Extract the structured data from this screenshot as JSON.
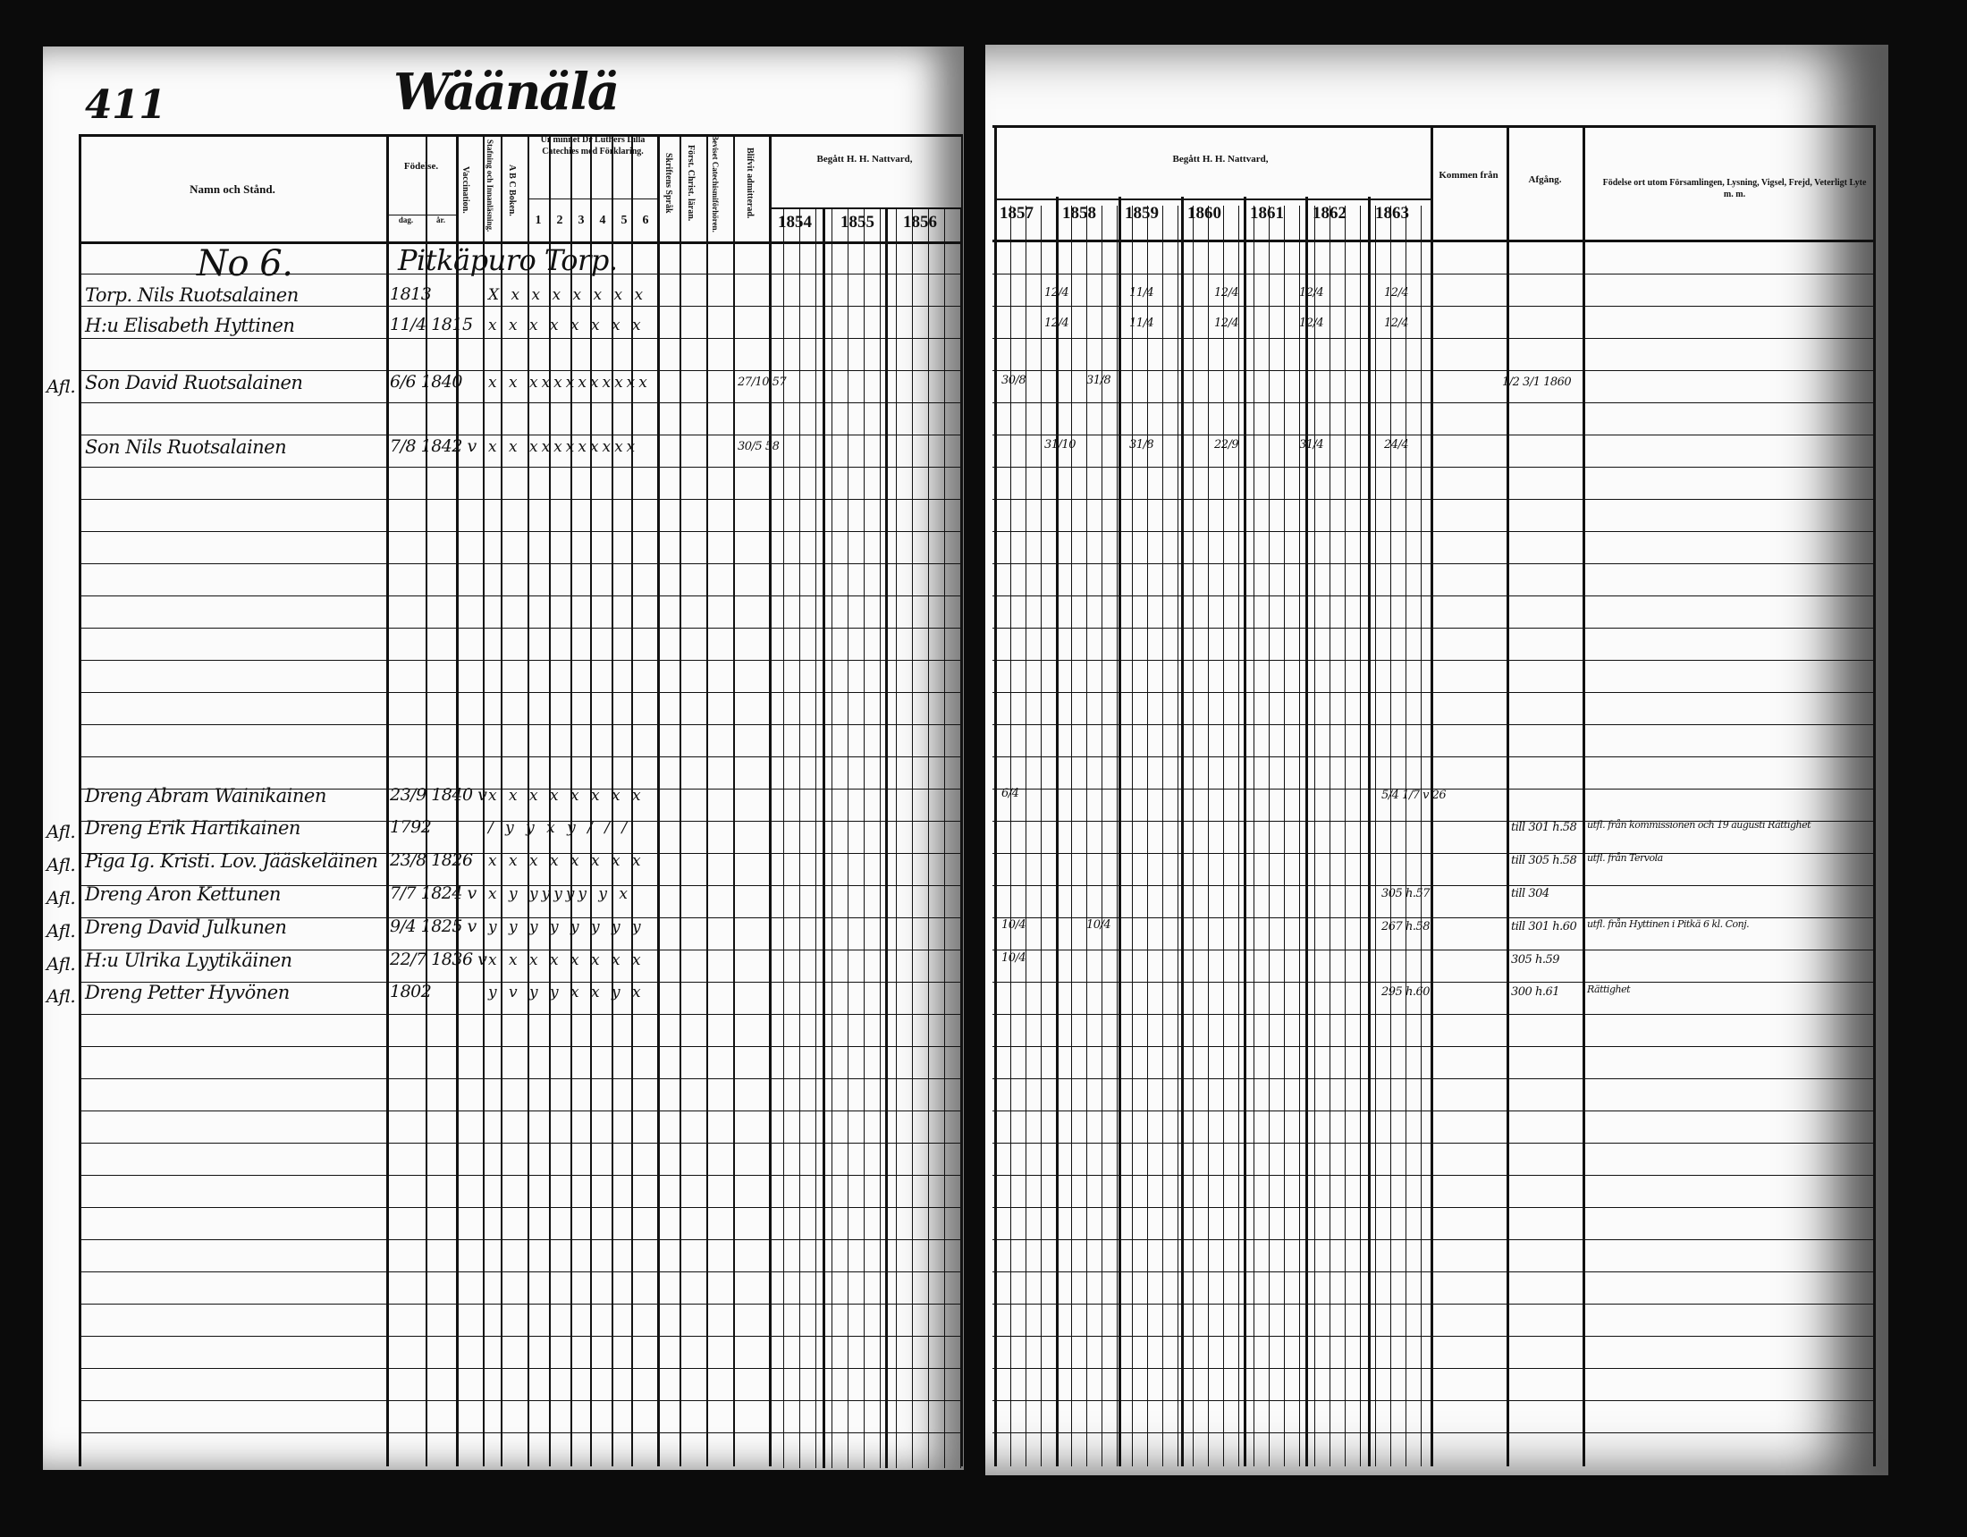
{
  "page_number": "411",
  "parish": "Wäänälä",
  "headers": {
    "name": "Namn och Stånd.",
    "birth": "Födelse.",
    "day": "dag.",
    "year": "år.",
    "vaccination": "Vaccination.",
    "spelling": "Stafning och Innanläsning.",
    "abc": "A B C Boken.",
    "catechism": "Ur minnet Dr Luthers Lilla Catechies med Förklaring.",
    "catechism_parts": [
      "1",
      "2",
      "3",
      "4",
      "5",
      "6"
    ],
    "scripture": "Skriftens Språk",
    "christian_doctrine": "Först. Christ. läran.",
    "catechism_proof": "Beviset Catechismiförhören.",
    "admitted": "Blifvit admitterad.",
    "communion_left": "Begått H. H. Nattvard,",
    "communion_right": "Begått H. H. Nattvard,",
    "years_left": [
      "1854",
      "1855",
      "1856"
    ],
    "years_right": [
      "1857",
      "1858",
      "1859",
      "1860",
      "1861",
      "1862",
      "1863"
    ],
    "came_from": "Kommen från",
    "departure": "Afgång.",
    "remarks": "Födelse ort utom Församlingen, Lysning, Vigsel, Frejd, Veterligt Lyte m. m."
  },
  "household": {
    "number": "No 6.",
    "place": "Pitkäpuro Torp."
  },
  "rows": [
    {
      "margin": "",
      "name": "Torp. Nils Ruotsalainen",
      "birth": "1813",
      "marks": "X x x x x x x x",
      "admit": "",
      "comm": [
        "12/4",
        "11/4",
        "12/4",
        "12/4",
        "12/4"
      ],
      "from": "",
      "dep": "",
      "note": ""
    },
    {
      "margin": "",
      "name": "H:u Elisabeth Hyttinen",
      "birth": "11/4 1815",
      "marks": "x x x x x x x x",
      "admit": "",
      "comm": [
        "12/4",
        "11/4",
        "12/4",
        "12/4",
        "12/4"
      ],
      "from": "",
      "dep": "",
      "note": ""
    },
    {
      "margin": "Afl.",
      "name": "Son David Ruotsalainen",
      "birth": "6/6 1840",
      "marks": "x x xxxxxxxxxx",
      "admit": "27/10 57",
      "comm": [
        "30/8",
        "31/8"
      ],
      "from": "",
      "dep": "1/2 3/1 1860",
      "note": ""
    },
    {
      "margin": "",
      "name": "Son Nils Ruotsalainen",
      "birth": "7/8 1842 v",
      "marks": "x x xxxxxxxxx",
      "admit": "30/5 58",
      "comm": [
        "31/10",
        "31/8",
        "22/9",
        "31/4",
        "24/4"
      ],
      "from": "",
      "dep": "",
      "note": ""
    },
    {
      "margin": "",
      "name": "Dreng Abram Wainikainen",
      "birth": "23/9 1840 v",
      "marks": "x x x x x x x x",
      "admit": "",
      "comm": [
        "6/4"
      ],
      "from": "5/4 1/7 v 26",
      "dep": "",
      "note": ""
    },
    {
      "margin": "Afl.",
      "name": "Dreng Erik Hartikainen",
      "birth": "1792",
      "marks": "/ y y x y / / /",
      "admit": "",
      "comm": [],
      "from": "",
      "dep": "till 301 h.58",
      "note": "utfl. från kommissionen och 19 augusti Rättighet"
    },
    {
      "margin": "Afl.",
      "name": "Piga Ig. Kristi. Lov. Jääskeläinen",
      "birth": "23/8 1826",
      "marks": "x x x x x x x x",
      "admit": "",
      "comm": [],
      "from": "",
      "dep": "till 305 h.58",
      "note": "utfl. från Tervola"
    },
    {
      "margin": "Afl.",
      "name": "Dreng Aron Kettunen",
      "birth": "7/7 1824 v",
      "marks": "x y yyyyy y x",
      "admit": "",
      "comm": [],
      "from": "305 h.57",
      "dep": "till 304",
      "note": ""
    },
    {
      "margin": "Afl.",
      "name": "Dreng David Julkunen",
      "birth": "9/4 1825 v",
      "marks": "y y y y y y y y",
      "admit": "",
      "comm": [
        "10/4",
        "10/4"
      ],
      "from": "267 h.58",
      "dep": "till 301 h.60",
      "note": "utfl. från Hyttinen i Pitkä 6 kl. Conj."
    },
    {
      "margin": "Afl.",
      "name": "H:u Ulrika Lyytikäinen",
      "birth": "22/7 1836 v",
      "marks": "x x x x x x x x",
      "admit": "",
      "comm": [
        "10/4"
      ],
      "from": "",
      "dep": "305 h.59",
      "note": ""
    },
    {
      "margin": "Afl.",
      "name": "Dreng Petter Hyvönen",
      "birth": "1802",
      "marks": "y v y y x x y x",
      "admit": "",
      "comm": [],
      "from": "295 h.60",
      "dep": "300 h.61",
      "note": "Rättighet"
    }
  ]
}
